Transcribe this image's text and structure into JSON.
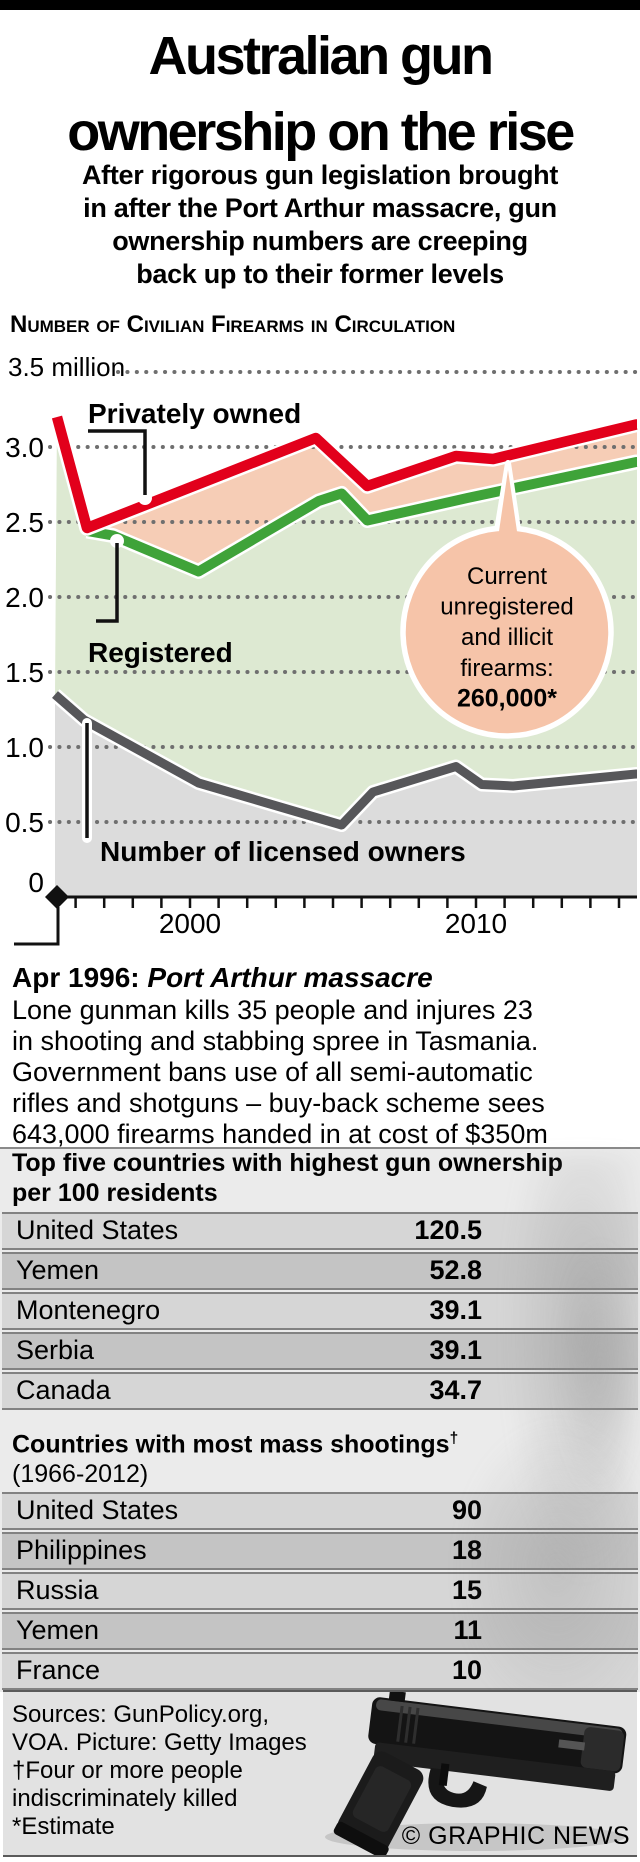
{
  "header": {
    "title_line1": "Australian gun",
    "title_line2": "ownership on the rise",
    "subtitle_lines": [
      "After rigorous gun legislation brought",
      "in after the Port Arthur massacre, gun",
      "ownership numbers are creeping",
      "back up to their former levels"
    ]
  },
  "chart": {
    "section_title": "Number of Civilian Firearms in Circulation",
    "unit_label": "3.5 million",
    "y_tick_labels": [
      "3.0",
      "2.5",
      "2.0",
      "1.5",
      "1.0",
      "0.5",
      "0"
    ],
    "x_tick_labels": [
      "2000",
      "2010"
    ],
    "series_labels": {
      "privately_owned": "Privately owned",
      "registered": "Registered",
      "licensed_owners": "Number of licensed owners"
    },
    "callout": {
      "lines": [
        "Current",
        "unregistered",
        "and illicit",
        "firearms:"
      ],
      "value": "260,000*"
    },
    "colors": {
      "privately_owned_line": "#e2001b",
      "registered_line": "#3fa339",
      "licensed_line": "#57575a",
      "unregistered_band": "#f6cdb6",
      "registered_band": "#dde9d2",
      "licensed_band": "#dcdcdc",
      "callout_bubble": "#f6c4a9",
      "gridline_dots": "#6f6f6f"
    }
  },
  "chart_data": {
    "type": "area",
    "title": "Number of Civilian Firearms in Circulation",
    "ylabel": "millions of firearms",
    "x_range": [
      1995,
      2016
    ],
    "ylim": [
      0,
      3.5
    ],
    "grid": "dotted horizontal lines every 0.5 million",
    "legend_position": "labels on chart",
    "series": [
      {
        "name": "Privately owned",
        "color": "#e2001b",
        "points": [
          [
            1995.35,
            3.2
          ],
          [
            1996.4,
            2.46
          ],
          [
            2004.4,
            3.06
          ],
          [
            2006.2,
            2.74
          ],
          [
            2009.3,
            2.94
          ],
          [
            2010.6,
            2.92
          ],
          [
            2015.6,
            3.15
          ]
        ]
      },
      {
        "name": "Registered",
        "color": "#3fa339",
        "points": [
          [
            1996.4,
            2.44
          ],
          [
            1997.3,
            2.41
          ],
          [
            2000.3,
            2.17
          ],
          [
            2004.5,
            2.64
          ],
          [
            2005.3,
            2.69
          ],
          [
            2006.2,
            2.51
          ],
          [
            2009.7,
            2.66
          ],
          [
            2015.6,
            2.9
          ]
        ]
      },
      {
        "name": "Number of licensed owners",
        "color": "#57575a",
        "points": [
          [
            1995.28,
            1.35
          ],
          [
            1996.3,
            1.18
          ],
          [
            2000.3,
            0.76
          ],
          [
            2005.3,
            0.48
          ],
          [
            2006.4,
            0.7
          ],
          [
            2009.3,
            0.87
          ],
          [
            2010.2,
            0.75
          ],
          [
            2011.3,
            0.74
          ],
          [
            2015.6,
            0.82
          ]
        ]
      }
    ],
    "annotation": "Current unregistered and illicit firearms: 260,000*",
    "event_marker": "Apr 1996 diamond at x-axis origin"
  },
  "event_note": {
    "date_label": "Apr 1996:",
    "event_label": "Port Arthur massacre",
    "body_lines": [
      "Lone gunman kills 35 people and injures 23",
      "in shooting and stabbing spree in Tasmania.",
      "Government bans use of all semi-automatic",
      "rifles and shotguns – buy-back scheme sees",
      "643,000 firearms handed in at cost of $350m"
    ]
  },
  "ownership_table": {
    "title_line1": "Top five countries with highest gun ownership",
    "title_line2": "per 100 residents",
    "rows": [
      {
        "country": "United States",
        "value": "120.5"
      },
      {
        "country": "Yemen",
        "value": "52.8"
      },
      {
        "country": "Montenegro",
        "value": "39.1"
      },
      {
        "country": "Serbia",
        "value": "39.1"
      },
      {
        "country": "Canada",
        "value": "34.7"
      }
    ]
  },
  "shootings_table": {
    "title": "Countries with most mass shootings",
    "dagger": "†",
    "subtitle": "(1966-2012)",
    "rows": [
      {
        "country": "United States",
        "value": "90"
      },
      {
        "country": "Philippines",
        "value": "18"
      },
      {
        "country": "Russia",
        "value": "15"
      },
      {
        "country": "Yemen",
        "value": "11"
      },
      {
        "country": "France",
        "value": "10"
      }
    ]
  },
  "footer": {
    "lines": [
      "Sources: GunPolicy.org,",
      "VOA. Picture: Getty Images",
      "†Four or more people",
      "indiscriminately killed",
      "*Estimate"
    ],
    "credit": "© GRAPHIC NEWS"
  }
}
